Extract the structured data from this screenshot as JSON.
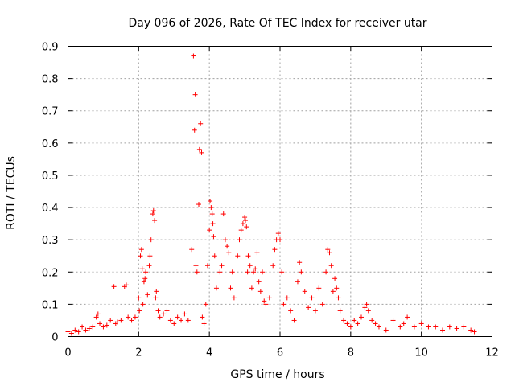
{
  "chart_data": {
    "type": "scatter",
    "title": "Day 096 of 2026, Rate Of TEC Index for receiver utar",
    "xlabel": "GPS time / hours",
    "ylabel": "ROTI / TECUs",
    "xlim": [
      0,
      12
    ],
    "ylim": [
      0,
      0.9
    ],
    "xticks": [
      0,
      2,
      4,
      6,
      8,
      10,
      12
    ],
    "yticks": [
      0,
      0.1,
      0.2,
      0.3,
      0.4,
      0.5,
      0.6,
      0.7,
      0.8,
      0.9
    ],
    "xtick_labels": [
      "0",
      "2",
      "4",
      "6",
      "8",
      "10",
      "12"
    ],
    "ytick_labels": [
      "0",
      "0.1",
      "0.2",
      "0.3",
      "0.4",
      "0.5",
      "0.6",
      "0.7",
      "0.8",
      "0.9"
    ],
    "grid": true,
    "marker": "+",
    "color": "#ff0000",
    "series": [
      {
        "x": [
          0.0,
          0.1,
          0.2,
          0.3,
          0.4,
          0.5,
          0.6,
          0.7,
          0.8,
          0.85,
          0.9,
          1.0,
          1.1,
          1.2,
          1.3,
          1.35,
          1.4,
          1.5,
          1.6,
          1.65,
          1.7,
          1.8,
          1.9,
          2.0,
          2.02,
          2.05,
          2.08,
          2.1,
          2.12,
          2.15,
          2.18,
          2.2,
          2.25,
          2.3,
          2.32,
          2.35,
          2.4,
          2.42,
          2.45,
          2.48,
          2.5,
          2.55,
          2.6,
          2.7,
          2.8,
          2.9,
          3.0,
          3.1,
          3.2,
          3.3,
          3.4,
          3.5,
          3.55,
          3.58,
          3.6,
          3.62,
          3.65,
          3.7,
          3.72,
          3.75,
          3.78,
          3.8,
          3.85,
          3.9,
          3.95,
          4.0,
          4.02,
          4.05,
          4.08,
          4.1,
          4.12,
          4.15,
          4.2,
          4.3,
          4.35,
          4.4,
          4.45,
          4.5,
          4.55,
          4.6,
          4.65,
          4.7,
          4.8,
          4.85,
          4.9,
          4.95,
          5.0,
          5.02,
          5.05,
          5.08,
          5.1,
          5.15,
          5.2,
          5.25,
          5.3,
          5.35,
          5.4,
          5.45,
          5.5,
          5.55,
          5.6,
          5.7,
          5.8,
          5.85,
          5.9,
          5.95,
          6.0,
          6.05,
          6.1,
          6.2,
          6.3,
          6.4,
          6.5,
          6.55,
          6.6,
          6.7,
          6.8,
          6.9,
          7.0,
          7.1,
          7.2,
          7.3,
          7.35,
          7.4,
          7.45,
          7.5,
          7.55,
          7.6,
          7.65,
          7.7,
          7.8,
          7.9,
          8.0,
          8.1,
          8.2,
          8.3,
          8.4,
          8.45,
          8.5,
          8.6,
          8.7,
          8.8,
          9.0,
          9.2,
          9.4,
          9.5,
          9.6,
          9.8,
          10.0,
          10.2,
          10.4,
          10.6,
          10.8,
          11.0,
          11.2,
          11.4,
          11.5
        ],
        "y": [
          0.015,
          0.01,
          0.02,
          0.015,
          0.03,
          0.02,
          0.025,
          0.03,
          0.06,
          0.07,
          0.04,
          0.03,
          0.035,
          0.05,
          0.155,
          0.04,
          0.045,
          0.05,
          0.155,
          0.16,
          0.06,
          0.05,
          0.06,
          0.12,
          0.08,
          0.25,
          0.27,
          0.21,
          0.1,
          0.17,
          0.18,
          0.2,
          0.13,
          0.22,
          0.25,
          0.3,
          0.38,
          0.39,
          0.36,
          0.12,
          0.14,
          0.08,
          0.06,
          0.07,
          0.08,
          0.05,
          0.04,
          0.06,
          0.05,
          0.07,
          0.05,
          0.27,
          0.87,
          0.64,
          0.75,
          0.22,
          0.2,
          0.41,
          0.58,
          0.66,
          0.57,
          0.06,
          0.04,
          0.1,
          0.22,
          0.33,
          0.42,
          0.4,
          0.38,
          0.35,
          0.31,
          0.25,
          0.15,
          0.2,
          0.22,
          0.38,
          0.3,
          0.28,
          0.26,
          0.15,
          0.2,
          0.12,
          0.25,
          0.3,
          0.33,
          0.35,
          0.37,
          0.36,
          0.34,
          0.2,
          0.25,
          0.22,
          0.15,
          0.2,
          0.21,
          0.26,
          0.17,
          0.14,
          0.2,
          0.11,
          0.1,
          0.12,
          0.22,
          0.27,
          0.3,
          0.32,
          0.3,
          0.2,
          0.1,
          0.12,
          0.08,
          0.05,
          0.17,
          0.23,
          0.2,
          0.14,
          0.09,
          0.12,
          0.08,
          0.15,
          0.1,
          0.2,
          0.27,
          0.26,
          0.22,
          0.14,
          0.18,
          0.15,
          0.12,
          0.08,
          0.05,
          0.04,
          0.03,
          0.05,
          0.04,
          0.06,
          0.09,
          0.1,
          0.08,
          0.05,
          0.04,
          0.03,
          0.02,
          0.05,
          0.03,
          0.04,
          0.06,
          0.03,
          0.04,
          0.03,
          0.03,
          0.02,
          0.03,
          0.025,
          0.03,
          0.02,
          0.015
        ]
      }
    ]
  }
}
